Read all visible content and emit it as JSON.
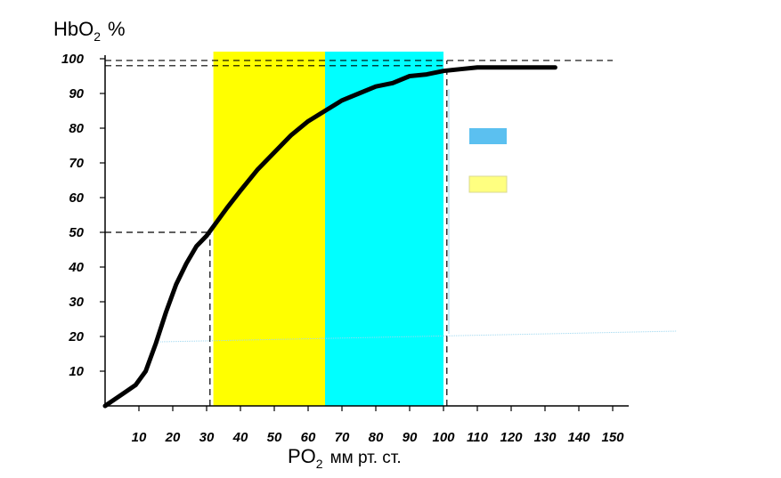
{
  "chart_data": {
    "type": "line",
    "ytitle": {
      "main": "HbO",
      "sub": "2",
      "unit": "%"
    },
    "xtitle": {
      "main": "PO",
      "sub": "2",
      "unit": "мм рт. ст."
    },
    "x_ticks": [
      10,
      20,
      30,
      40,
      50,
      60,
      70,
      80,
      90,
      100,
      110,
      120,
      130,
      140,
      150
    ],
    "y_ticks": [
      10,
      20,
      30,
      40,
      50,
      60,
      70,
      80,
      90,
      100
    ],
    "xlim": [
      0,
      155
    ],
    "ylim": [
      0,
      102
    ],
    "grid": false,
    "series": [
      {
        "x": [
          0,
          3,
          6,
          9,
          12,
          15,
          18,
          21,
          24,
          27,
          30,
          33,
          36,
          40,
          45,
          50,
          55,
          60,
          65,
          70,
          75,
          80,
          85,
          90,
          95,
          100,
          105,
          110,
          120,
          133
        ],
        "y": [
          0,
          2,
          4,
          6,
          10,
          18,
          27,
          35,
          41,
          46,
          49,
          53,
          57,
          62,
          68,
          73,
          78,
          82,
          85,
          88,
          90,
          92,
          93,
          95,
          95.5,
          96.5,
          97,
          97.5,
          97.5,
          97.5
        ],
        "color": "#000000"
      }
    ],
    "bands": [
      {
        "x_from": 32,
        "x_to": 65,
        "color": "#ffff00"
      },
      {
        "x_from": 65,
        "x_to": 100,
        "color": "#00ffff"
      }
    ],
    "reference_lines": [
      {
        "from": [
          0,
          99.5
        ],
        "to": [
          150,
          99.5
        ]
      },
      {
        "from": [
          0,
          98
        ],
        "to": [
          100,
          98
        ]
      },
      {
        "from": [
          0,
          50
        ],
        "to": [
          31,
          50
        ]
      },
      {
        "from": [
          31,
          0
        ],
        "to": [
          31,
          50
        ]
      },
      {
        "from": [
          101,
          0
        ],
        "to": [
          101,
          99.5
        ]
      }
    ],
    "legend": [
      {
        "color": "#5bc0f0",
        "label": ""
      },
      {
        "color": "#ffff80",
        "label": ""
      }
    ]
  }
}
